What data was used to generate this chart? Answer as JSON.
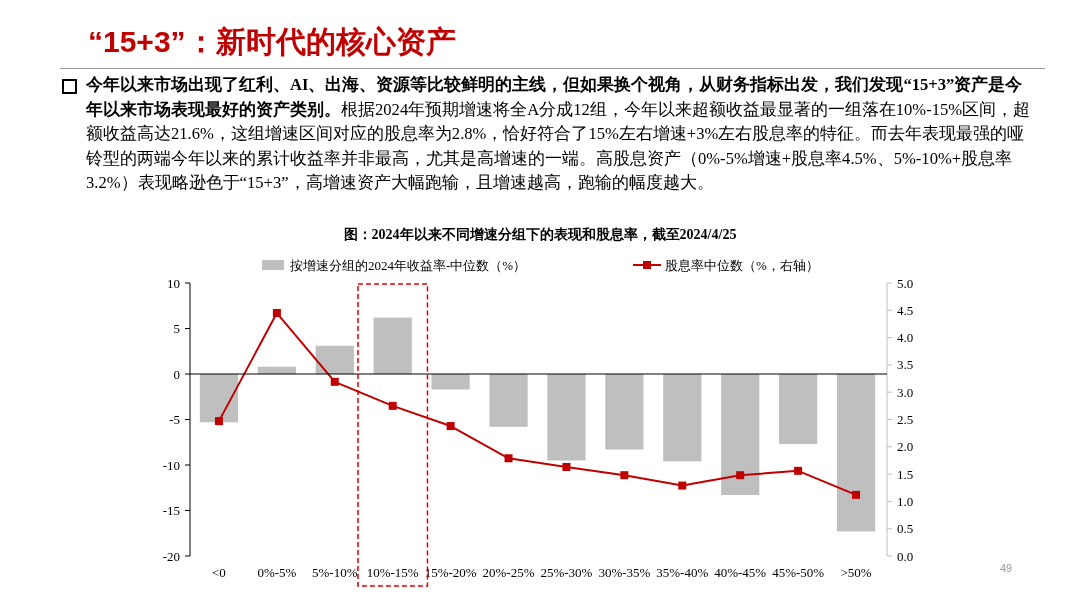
{
  "chart_data": {
    "type": "bar",
    "title": "“15+3”：新时代的核心资产",
    "subtitle": "**今年以来市场出现了红利、AI、出海、资源等比较鲜明的主线，但如果换个视角，从财务指标出发，我们发现“15+3”资产是今年以来市场表现最好的资产类别。**根据2024年预期增速将全A分成12组，今年以来超额收益最显著的一组落在10%-15%区间，超额收益高达21.6%，这组增速区间对应的股息率为2.8%，恰好符合了15%左右增速+3%左右股息率的特征。而去年表现最强的哑铃型的两端今年以来的累计收益率并非最高，尤其是高增速的一端。高股息资产（0%-5%增速+股息率4.5%、5%-10%+股息率3.2%）表现略逊色于“15+3”，高增速资产大幅跑输，且增速越高，跑输的幅度越大。",
    "annotations": [
      "图：2024年以来不同增速分组下的表现和股息率，截至2024/4/25",
      "49"
    ],
    "categories": [
      "<0",
      "0%-5%",
      "5%-10%",
      "10%-15%",
      "15%-20%",
      "20%-25%",
      "25%-30%",
      "30%-35%",
      "35%-40%",
      "40%-45%",
      "45%-50%",
      ">50%"
    ],
    "series": [
      {
        "name": "按增速分组的2024年收益率-中位数（%）",
        "color": "#bfbfbf",
        "values": [
          -5.3,
          0.8,
          3.1,
          6.2,
          -1.7,
          -5.8,
          -9.5,
          -8.3,
          -9.6,
          -13.3,
          -7.7,
          -17.3
        ]
      },
      {
        "name": "股息率中位数（%，右轴）",
        "type": "line",
        "axis": "y2",
        "color": "#c00000",
        "values": [
          2.47,
          4.45,
          3.19,
          2.75,
          2.38,
          1.79,
          1.63,
          1.48,
          1.29,
          1.48,
          1.56,
          1.12
        ]
      }
    ],
    "ylim": [
      -20,
      10
    ],
    "yticks": [
      -20,
      -15,
      -10,
      -5,
      0,
      5,
      10
    ],
    "y2lim": [
      0,
      5
    ],
    "y2ticks": [
      {
        "value": 0,
        "label": "0.0"
      },
      {
        "value": 0.5,
        "label": "0.5"
      },
      {
        "value": 1,
        "label": "1.0"
      },
      {
        "value": 1.5,
        "label": "1.5"
      },
      {
        "value": 2,
        "label": "2.0"
      },
      {
        "value": 2.5,
        "label": "2.5"
      },
      {
        "value": 3,
        "label": "3.0"
      },
      {
        "value": 3.5,
        "label": "3.5"
      },
      {
        "value": 4,
        "label": "4.0"
      },
      {
        "value": 4.5,
        "label": "4.5"
      },
      {
        "value": 5,
        "label": "5.0"
      }
    ],
    "marker": "square",
    "legend": "top"
  }
}
